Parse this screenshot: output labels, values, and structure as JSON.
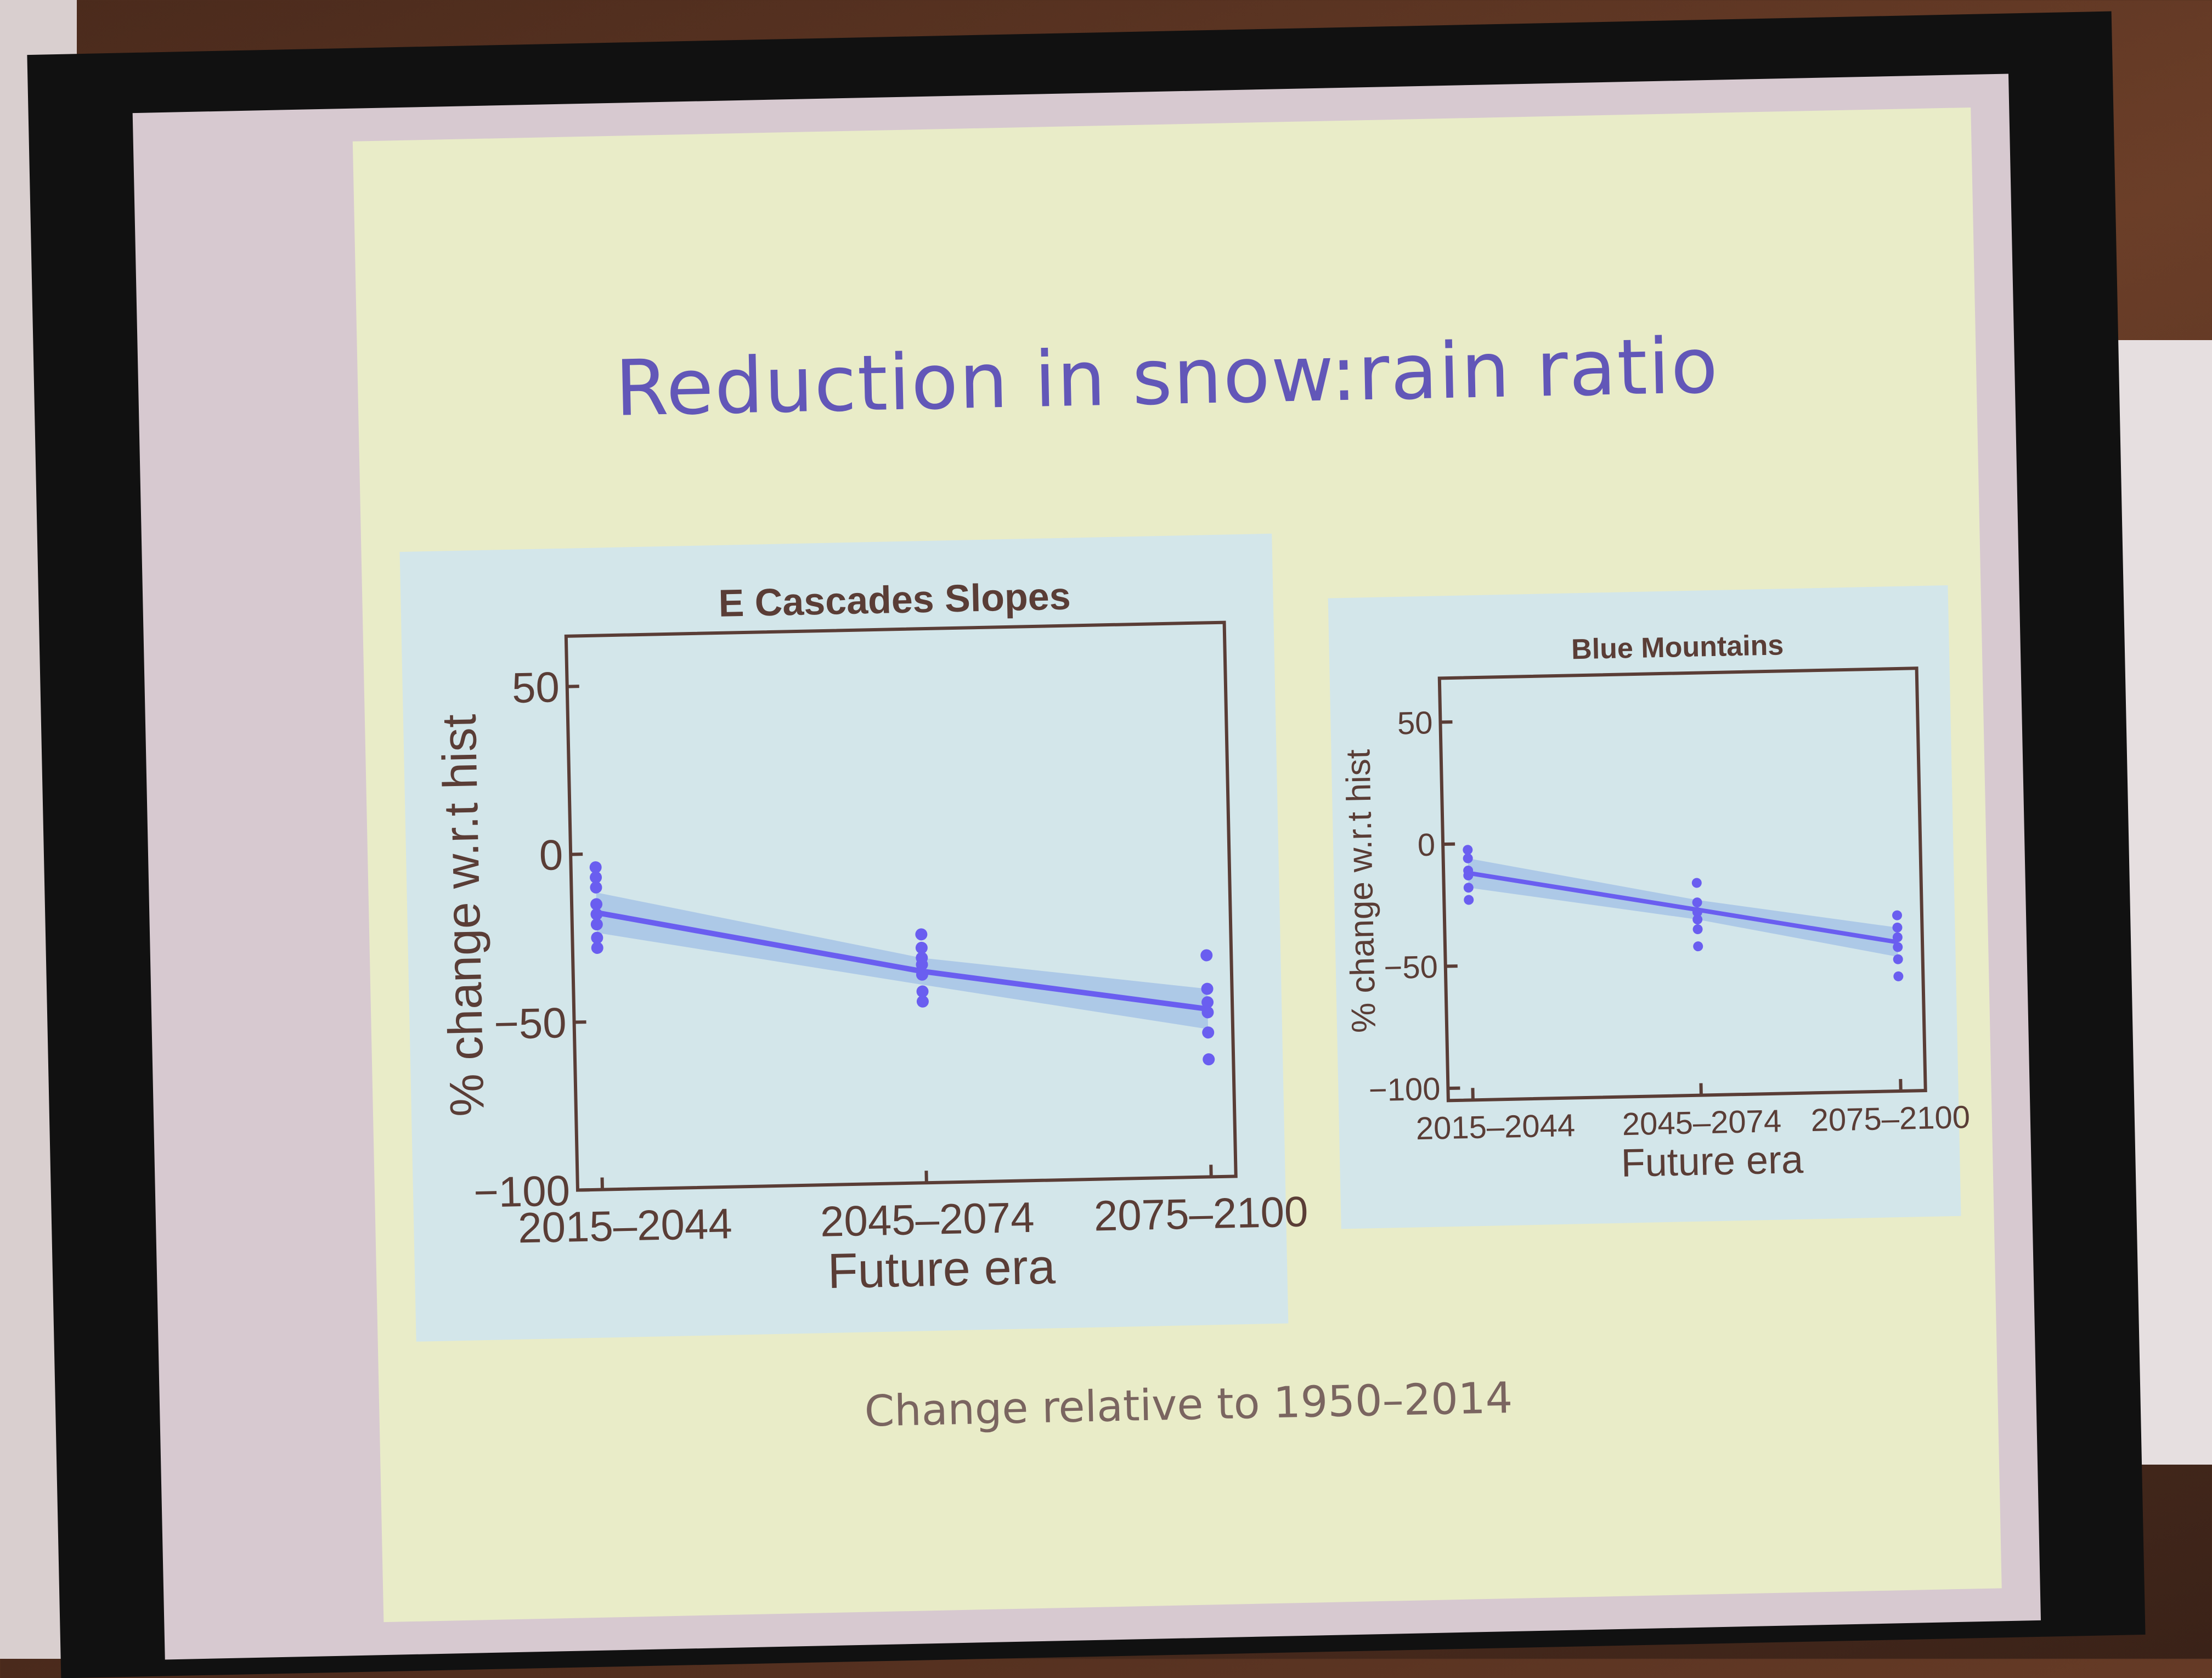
{
  "slide": {
    "title": "Reduction in snow:rain ratio",
    "caption": "Change relative to 1950–2014"
  },
  "colors": {
    "points": "#6a5ef0",
    "line": "#6a5ef0",
    "band": "#a6c3e6",
    "axis": "#5a3d36"
  },
  "chart_data": [
    {
      "type": "scatter",
      "title": "E Cascades Slopes",
      "xlabel": "Future era",
      "ylabel": "% change w.r.t hist",
      "categories": [
        "2015–2044",
        "2045–2074",
        "2075–2100"
      ],
      "yticks": [
        "50",
        "0",
        "−50",
        "−100"
      ],
      "ytick_values": [
        50,
        0,
        -50,
        -100
      ],
      "ylim": [
        -100,
        65
      ],
      "points": [
        [
          -4,
          -7,
          -10,
          -15,
          -18,
          -21,
          -25,
          -28
        ],
        [
          -26,
          -30,
          -33,
          -35,
          -38,
          -43,
          -46
        ],
        [
          -34,
          -44,
          -48,
          -51,
          -57,
          -65
        ]
      ],
      "fit_line": [
        -17.5,
        -37,
        -50
      ],
      "band_halfwidth": [
        6,
        4,
        6
      ]
    },
    {
      "type": "scatter",
      "title": "Blue Mountains",
      "xlabel": "Future era",
      "ylabel": "% change w.r.t hist",
      "categories": [
        "2015–2044",
        "2045–2074",
        "2075–2100"
      ],
      "yticks": [
        "50",
        "0",
        "−50",
        "−100"
      ],
      "ytick_values": [
        50,
        0,
        -50,
        -100
      ],
      "ylim": [
        -105,
        68
      ],
      "points": [
        [
          -2.5,
          -6,
          -11,
          -13,
          -18,
          -23
        ],
        [
          -18,
          -26,
          -30,
          -33,
          -37,
          -44
        ],
        [
          -33,
          -38,
          -42,
          -46,
          -51,
          -58
        ]
      ],
      "fit_line": [
        -12,
        -29,
        -44
      ],
      "band_halfwidth": [
        6,
        4,
        6
      ]
    }
  ]
}
